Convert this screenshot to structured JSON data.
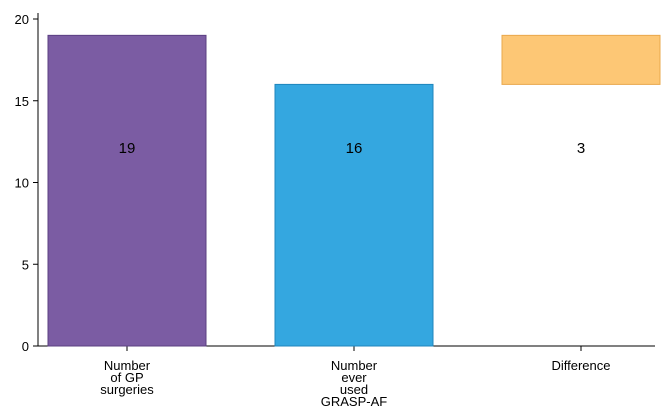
{
  "chart_data": {
    "type": "bar",
    "chart_style": "waterfall",
    "categories": [
      [
        "Number",
        "of GP",
        "surgeries"
      ],
      [
        "Number",
        "ever",
        "used",
        "GRASP-AF"
      ],
      [
        "Difference"
      ]
    ],
    "bars": [
      {
        "base": 0,
        "top": 19,
        "label": "19",
        "color": "#7b5ca3",
        "stroke": "#5b3f82"
      },
      {
        "base": 0,
        "top": 16,
        "label": "16",
        "color": "#34a7e0",
        "stroke": "#1f86bd"
      },
      {
        "base": 16,
        "top": 19,
        "label": "3",
        "color": "#fdc775",
        "stroke": "#e9a84c"
      }
    ],
    "values": [
      19,
      16,
      3
    ],
    "yticks": [
      "0",
      "5",
      "10",
      "15",
      "20"
    ],
    "ylim": [
      0,
      20
    ],
    "grid": false,
    "legend": "none"
  }
}
